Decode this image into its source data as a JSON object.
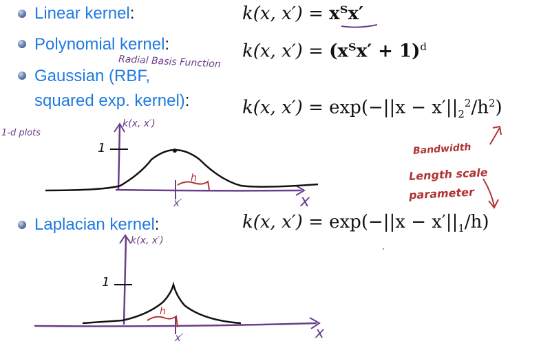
{
  "items": [
    {
      "label": "Linear kernel",
      "colon": ":"
    },
    {
      "label": "Polynomial kernel",
      "colon": ":"
    },
    {
      "label": "Gaussian (RBF,",
      "label2": "squared exp. kernel)",
      "colon": ":"
    },
    {
      "label": "Laplacian kernel",
      "colon": ":"
    }
  ],
  "formulas": {
    "lhs": "k(x, x′) = ",
    "linear_rhs": "xᵀx′",
    "poly_rhs": "(xᵀx′ + 1)",
    "poly_exp": "d",
    "gauss_rhs": "exp(−||x − x′||",
    "gauss_sub": "2",
    "gauss_sup": "2",
    "gauss_tail": "/h",
    "gauss_tail_sup": "2",
    "gauss_close": ")",
    "lap_rhs": "exp(−||x − x′||",
    "lap_sub": "1",
    "lap_tail": "/h)"
  },
  "annotations": {
    "rbf_note": "Radial Basis Function",
    "plot_note": "1-d plots",
    "axis_y_top": "k(x, x′)",
    "axis_y_bottom": "k(x, x′)",
    "tick_one_top": "1",
    "tick_one_bottom": "1",
    "xprime_top": "x′",
    "xprime_bottom": "x′",
    "h_top": "h",
    "h_bottom": "h",
    "x_top": "x",
    "x_bottom": "x",
    "bandwidth_1": "Bandwidth",
    "bandwidth_2": "Length scale",
    "bandwidth_3": "parameter"
  },
  "colors": {
    "label": "#1f7ae0",
    "purple_ink": "#6a3d8a",
    "red_ink": "#b03434"
  }
}
